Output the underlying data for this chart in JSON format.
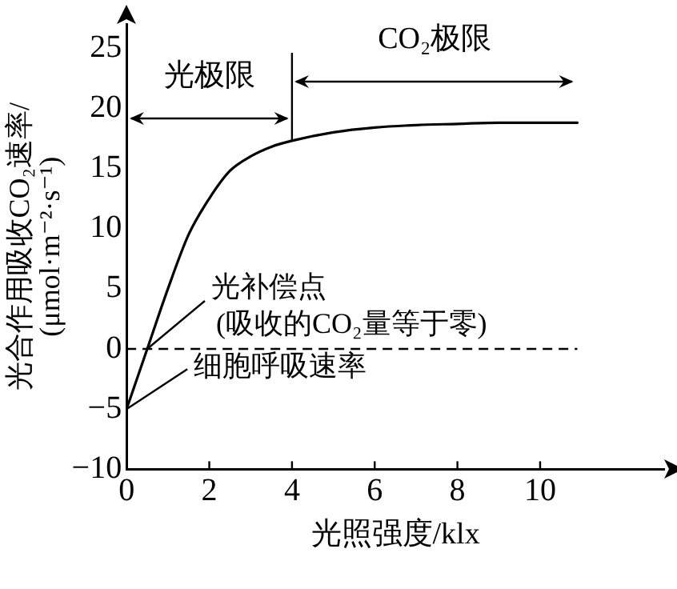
{
  "chart_data": {
    "type": "line",
    "xlabel": "光照强度/klx",
    "ylabel": "光合作用吸收CO₂速率/\n(μmol·m⁻²·s⁻¹)",
    "x": [
      0,
      0.5,
      1,
      1.5,
      2,
      2.5,
      3,
      3.5,
      4,
      5,
      6,
      7,
      8,
      9,
      10.9
    ],
    "series": [
      {
        "color": "#000000",
        "values": [
          -5,
          0,
          5,
          9.5,
          12.5,
          14.8,
          16,
          16.8,
          17.3,
          18,
          18.4,
          18.6,
          18.7,
          18.8,
          18.8
        ]
      }
    ],
    "xlim": [
      0,
      13
    ],
    "xticks": [
      0,
      2,
      4,
      6,
      8,
      10
    ],
    "ylim": [
      -10,
      27
    ],
    "yticks": [
      {
        "value": -10,
        "label": "−10"
      },
      {
        "value": -5,
        "label": "−5"
      },
      0,
      5,
      10,
      15,
      20,
      25
    ],
    "ref_lines": [
      {
        "axis": "y",
        "value": 0,
        "line_style": "dashed"
      },
      {
        "axis": "x",
        "value": 4
      }
    ],
    "annotations": [
      "光极限",
      "CO₂极限",
      {
        "text": "光补偿点",
        "x": 0.5,
        "y": 0
      },
      "(吸收的CO₂量等于零)",
      {
        "text": "细胞呼吸速率",
        "x": 0,
        "y": -5
      }
    ],
    "grid": false,
    "legend": false,
    "marker": "none",
    "line_style": "solid"
  }
}
